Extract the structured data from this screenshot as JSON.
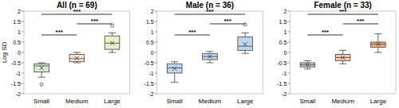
{
  "chart_data": [
    {
      "type": "box",
      "title": "All (n = 69)",
      "y_label": "Log SD",
      "categories": [
        "Small",
        "Medium",
        "Large"
      ],
      "colors": [
        "#d9ead3",
        "#fbe5d6",
        "#e8f2c8"
      ],
      "boxes": [
        {
          "min": -1.2,
          "q1": -0.95,
          "median": -0.65,
          "q3": -0.55,
          "max": -0.5,
          "mean": -0.75,
          "outliers": [
            -1.55
          ]
        },
        {
          "min": -0.5,
          "q1": -0.45,
          "median": -0.3,
          "q3": -0.1,
          "max": 0.0,
          "mean": -0.28,
          "outliers": []
        },
        {
          "min": 0.0,
          "q1": 0.15,
          "median": 0.45,
          "q3": 0.8,
          "max": 0.95,
          "mean": 0.45,
          "outliers": [
            1.3
          ]
        }
      ],
      "annotations": [
        {
          "from": 0,
          "to": 1,
          "text": "***"
        },
        {
          "from": 1,
          "to": 2,
          "text": "***"
        },
        {
          "from": 0,
          "to": 2,
          "text": "***"
        }
      ],
      "ylim": [
        -2,
        2
      ],
      "yticks": [
        -2,
        -1.5,
        -1,
        -0.5,
        0,
        0.5,
        1,
        1.5,
        2
      ]
    },
    {
      "type": "box",
      "title": "Male (n = 36)",
      "categories": [
        "Small",
        "Medium",
        "Large"
      ],
      "colors": [
        "#bdd7ee",
        "#bdd7ee",
        "#bdd7ee"
      ],
      "boxes": [
        {
          "min": -1.45,
          "q1": -1.0,
          "median": -0.75,
          "q3": -0.55,
          "max": -0.45,
          "mean": -0.78,
          "outliers": []
        },
        {
          "min": -0.5,
          "q1": -0.35,
          "median": -0.2,
          "q3": -0.05,
          "max": 0.05,
          "mean": -0.2,
          "outliers": []
        },
        {
          "min": -0.05,
          "q1": 0.1,
          "median": 0.3,
          "q3": 0.75,
          "max": 0.95,
          "mean": 0.4,
          "outliers": [
            1.35
          ]
        }
      ],
      "annotations": [
        {
          "from": 0,
          "to": 1,
          "text": "***"
        },
        {
          "from": 1,
          "to": 2,
          "text": "***"
        },
        {
          "from": 0,
          "to": 2,
          "text": "***"
        }
      ],
      "ylim": [
        -2,
        2
      ],
      "yticks": [
        -2,
        -1.5,
        -1,
        -0.5,
        0,
        0.5,
        1,
        1.5,
        2
      ]
    },
    {
      "type": "box",
      "title": "Female (n = 33)",
      "categories": [
        "Small",
        "Medium",
        "Large"
      ],
      "colors": [
        "#c9c9c9",
        "#f8cbad",
        "#f4b183"
      ],
      "boxes": [
        {
          "min": -0.8,
          "q1": -0.7,
          "median": -0.6,
          "q3": -0.5,
          "max": -0.4,
          "mean": -0.6,
          "outliers": []
        },
        {
          "min": -0.55,
          "q1": -0.4,
          "median": -0.25,
          "q3": -0.1,
          "max": 0.1,
          "mean": -0.25,
          "outliers": []
        },
        {
          "min": 0.0,
          "q1": 0.25,
          "median": 0.4,
          "q3": 0.5,
          "max": 0.9,
          "mean": 0.4,
          "outliers": []
        }
      ],
      "annotations": [
        {
          "from": 0,
          "to": 1,
          "text": "***"
        },
        {
          "from": 1,
          "to": 2,
          "text": "***"
        },
        {
          "from": 0,
          "to": 2,
          "text": "***"
        }
      ],
      "ylim": [
        -2,
        2
      ],
      "yticks": [
        -2,
        -1.5,
        -1,
        -0.5,
        0,
        0.5,
        1,
        1.5,
        2
      ]
    }
  ]
}
